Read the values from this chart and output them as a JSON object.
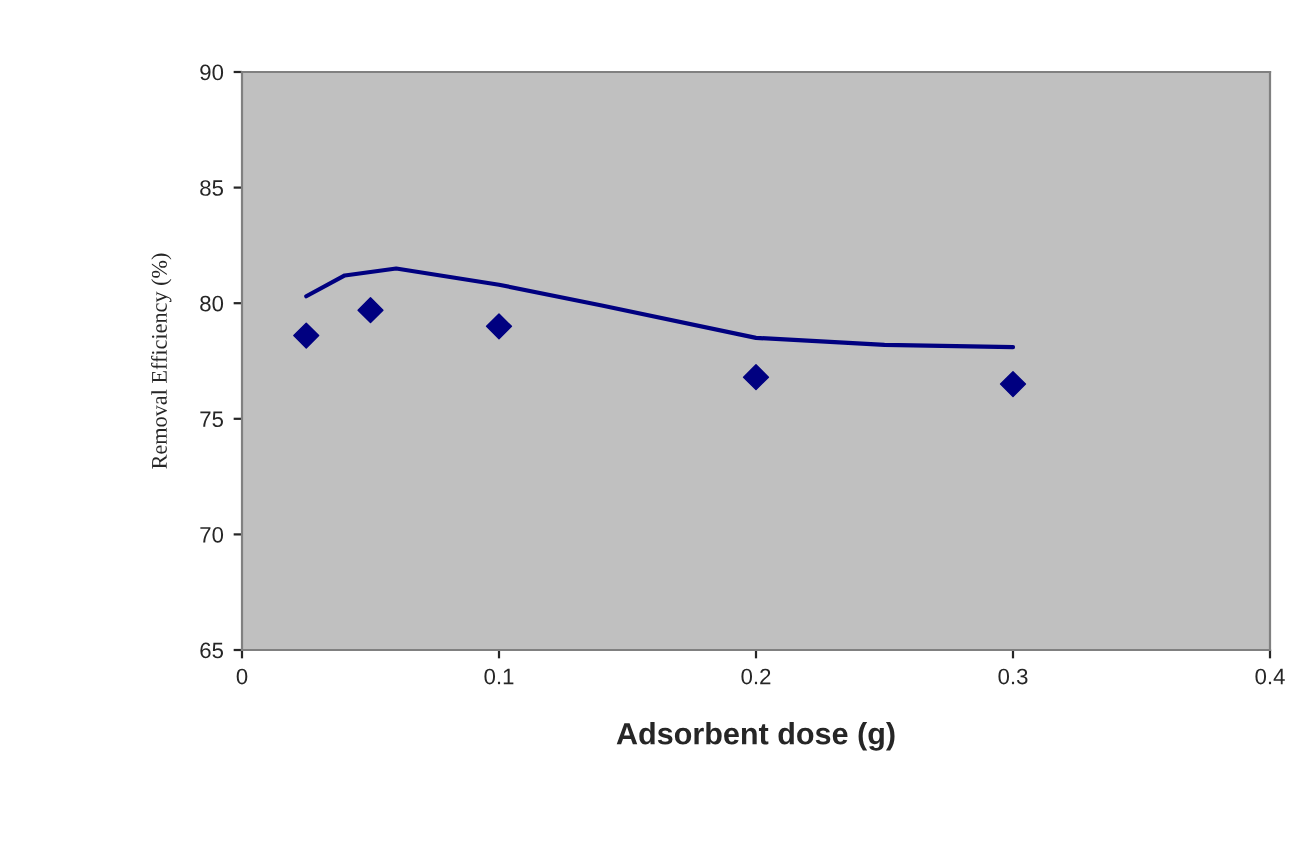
{
  "chart_data": {
    "type": "scatter",
    "xlabel": "Adsorbent dose (g)",
    "ylabel": "Removal Efficiency (%)",
    "x": [
      0.025,
      0.05,
      0.1,
      0.2,
      0.3
    ],
    "series": [
      {
        "color": "#000080",
        "marker": "diamond",
        "values": [
          78.6,
          79.7,
          79.0,
          76.8,
          76.5
        ]
      },
      {
        "type": "line",
        "color": "#000080",
        "marker": "none",
        "x": [
          0.025,
          0.04,
          0.06,
          0.1,
          0.14,
          0.2,
          0.25,
          0.3
        ],
        "values": [
          80.3,
          81.2,
          81.5,
          80.8,
          79.9,
          78.5,
          78.2,
          78.1
        ]
      }
    ],
    "xlim": [
      0,
      0.4
    ],
    "xticks": [
      0,
      0.1,
      0.2,
      0.3,
      0.4
    ],
    "ylim": [
      65,
      90
    ],
    "yticks": [
      65,
      70,
      75,
      80,
      85,
      90
    ],
    "grid": false,
    "legend": false
  }
}
